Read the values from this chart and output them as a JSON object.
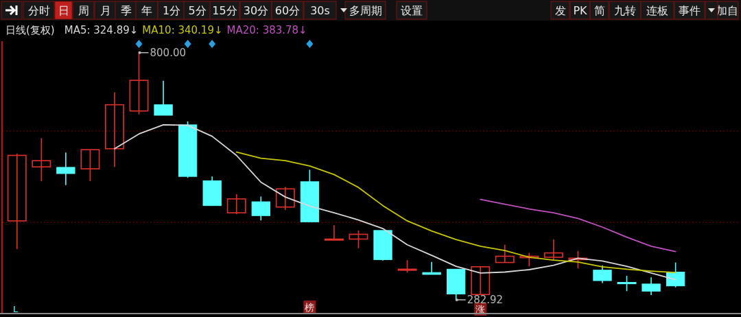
{
  "chart_data": {
    "type": "candlestick",
    "title": "日线(复权)",
    "categories": [
      null,
      null,
      null,
      null,
      null,
      null,
      null,
      null,
      null,
      null,
      null,
      null,
      null,
      null,
      null,
      null,
      null,
      null,
      null,
      null,
      null,
      null,
      null,
      null,
      null,
      null,
      null,
      null
    ],
    "ohlc": [
      [
        448,
        589,
        389,
        585
      ],
      [
        561,
        621,
        531,
        574
      ],
      [
        560,
        591,
        523,
        547
      ],
      [
        557,
        597,
        531,
        597
      ],
      [
        599,
        717,
        561,
        691
      ],
      [
        678,
        800,
        671,
        742
      ],
      [
        691,
        741,
        669,
        669
      ],
      [
        649,
        656,
        538,
        541
      ],
      [
        532,
        541,
        480,
        480
      ],
      [
        465,
        504,
        462,
        494
      ],
      [
        488,
        499,
        449,
        459
      ],
      [
        477,
        519,
        471,
        515
      ],
      [
        530,
        555,
        446,
        446
      ],
      [
        410,
        439,
        410,
        410
      ],
      [
        410,
        428,
        391,
        420
      ],
      [
        428,
        428,
        365,
        367
      ],
      [
        347,
        366,
        340,
        347
      ],
      [
        340,
        362,
        336,
        336
      ],
      [
        347,
        347,
        282.92,
        295
      ],
      [
        294,
        352,
        294,
        352
      ],
      [
        361,
        398,
        361,
        374
      ],
      [
        371,
        381,
        353,
        374
      ],
      [
        372,
        409,
        366,
        381
      ],
      [
        367,
        385,
        349,
        370
      ],
      [
        345,
        355,
        318,
        323
      ],
      [
        319,
        333,
        301,
        319
      ],
      [
        316,
        330,
        293,
        301
      ],
      [
        341,
        361,
        309,
        312
      ]
    ],
    "colors": [
      "#e0302a",
      "#e0302a",
      "#54ffff",
      "#e0302a",
      "#e0302a",
      "#e0302a",
      "#54ffff",
      "#54ffff",
      "#54ffff",
      "#e0302a",
      "#54ffff",
      "#e0302a",
      "#54ffff",
      "#e0302a",
      "#e0302a",
      "#54ffff",
      "#e0302a",
      "#54ffff",
      "#54ffff",
      "#e0302a",
      "#e0302a",
      "#e0302a",
      "#e0302a",
      "#e0302a",
      "#54ffff",
      "#54ffff",
      "#54ffff",
      "#54ffff"
    ],
    "series": [
      {
        "name": "MA5: 324.89↓",
        "type": "line",
        "color": "#d8d8d8",
        "values": [
          null,
          null,
          null,
          null,
          599,
          630,
          649,
          648,
          625,
          585,
          529,
          498,
          479,
          465,
          450,
          432,
          398,
          376,
          353,
          339,
          341,
          346,
          355,
          370,
          364,
          353,
          339,
          325
        ]
      },
      {
        "name": "MA10: 340.19↓",
        "type": "line",
        "color": "#c8c800",
        "values": [
          null,
          null,
          null,
          null,
          null,
          null,
          null,
          null,
          null,
          592,
          579,
          574,
          563,
          545,
          518,
          480,
          448,
          427,
          409,
          395,
          386,
          372,
          366,
          362,
          352,
          347,
          343,
          340
        ]
      },
      {
        "name": "MA20: 383.78↓",
        "type": "line",
        "color": "#c050c0",
        "values": [
          null,
          null,
          null,
          null,
          null,
          null,
          null,
          null,
          null,
          null,
          null,
          null,
          null,
          null,
          null,
          null,
          null,
          null,
          null,
          493,
          483,
          473,
          465,
          453,
          435,
          414,
          395,
          384
        ]
      }
    ],
    "ylim": [
      257,
      824
    ],
    "yticks": [
      {
        "value": 636,
        "label": null
      },
      {
        "value": 445,
        "label": null
      }
    ],
    "grid": "y",
    "tick_labels": false,
    "legend": "top left",
    "annotations": [
      "800.00",
      "282.92",
      "分时",
      "日",
      "周",
      "月",
      "季",
      "年",
      "1分",
      "5分",
      "15分",
      "30分",
      "60分",
      "30s",
      "多周期",
      "设置",
      "发",
      "PK",
      "简",
      "九转",
      "连板",
      "事件",
      "加自",
      "榜",
      "涨",
      "L"
    ]
  }
}
